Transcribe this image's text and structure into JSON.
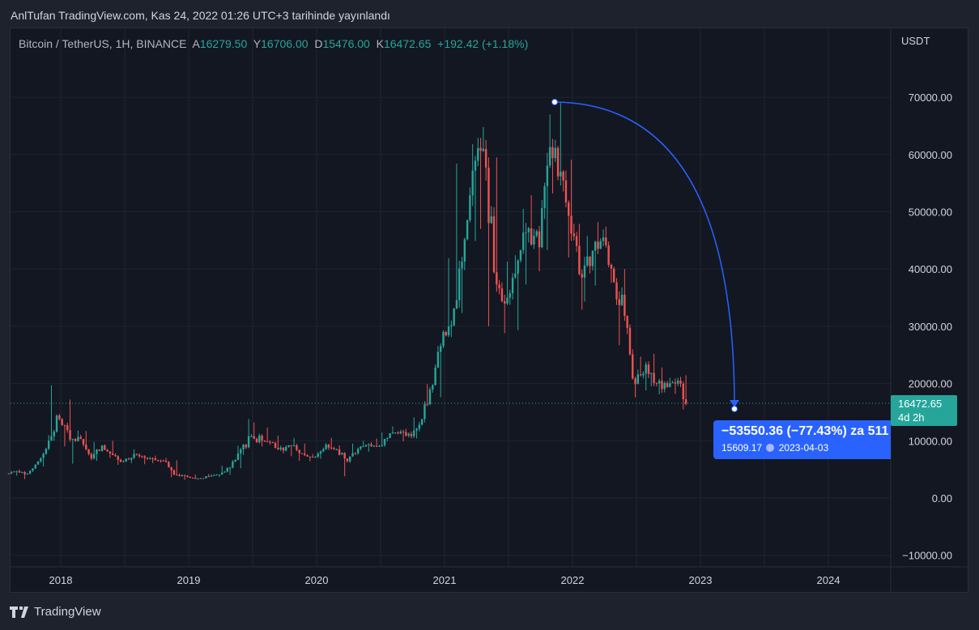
{
  "header": {
    "published": "AnlTufan TradingView.com, Kas 24, 2022 01:26 UTC+3 tarihinde yayınlandı"
  },
  "legend": {
    "symbol": "Bitcoin / TetherUS, 1H, BINANCE",
    "open_label": "A",
    "open": "16279.50",
    "high_label": "Y",
    "high": "16706.00",
    "low_label": "D",
    "low": "15476.00",
    "close_label": "K",
    "close": "16472.65",
    "change": "+192.42 (+1.18%)"
  },
  "price_axis": {
    "currency": "USDT",
    "ticks": [
      "70000.00",
      "60000.00",
      "50000.00",
      "40000.00",
      "30000.00",
      "20000.00",
      "10000.00",
      "0.00",
      "−10000.00"
    ]
  },
  "last_price": {
    "price": "16472.65",
    "countdown": "4d 2h"
  },
  "measure": {
    "line1": "−53550.36 (−77.43%) za 511",
    "price": "15609.17",
    "date": "2023-04-03"
  },
  "footer": {
    "brand": "TradingView"
  },
  "colors": {
    "up": "#26a69a",
    "down": "#ef5350",
    "measure": "#2962ff"
  },
  "chart_data": {
    "type": "candlestick",
    "title": "Bitcoin / TetherUS, 1H, BINANCE",
    "ylabel": "USDT",
    "ylim": [
      -12000,
      78000
    ],
    "xticks": [
      "2018",
      "2019",
      "2020",
      "2021",
      "2022",
      "2023",
      "2024"
    ],
    "start_month": "2017-08",
    "ohlc_monthly_approx": [
      [
        4300,
        4750,
        3900,
        4700
      ],
      [
        4700,
        4980,
        3300,
        4300
      ],
      [
        4300,
        6450,
        4100,
        6400
      ],
      [
        6400,
        11000,
        5500,
        10000
      ],
      [
        10000,
        19700,
        10000,
        13800
      ],
      [
        13800,
        17200,
        9000,
        10200
      ],
      [
        10200,
        11800,
        6000,
        10300
      ],
      [
        10300,
        11700,
        6600,
        6900
      ],
      [
        6900,
        9800,
        6500,
        9200
      ],
      [
        9200,
        10000,
        7000,
        7500
      ],
      [
        7500,
        7800,
        5800,
        6400
      ],
      [
        6400,
        8500,
        6100,
        7700
      ],
      [
        7700,
        7800,
        5900,
        7000
      ],
      [
        7000,
        7400,
        6100,
        6600
      ],
      [
        6600,
        7000,
        6200,
        6300
      ],
      [
        6300,
        6600,
        3600,
        4000
      ],
      [
        4000,
        4300,
        3150,
        3700
      ],
      [
        3700,
        4100,
        3350,
        3400
      ],
      [
        3400,
        4200,
        3350,
        3800
      ],
      [
        3800,
        4150,
        3700,
        4100
      ],
      [
        4100,
        5650,
        4050,
        5300
      ],
      [
        5300,
        9100,
        5200,
        8500
      ],
      [
        8500,
        13800,
        7500,
        10800
      ],
      [
        10800,
        13200,
        9000,
        10000
      ],
      [
        10000,
        12300,
        9300,
        9600
      ],
      [
        9600,
        10900,
        7800,
        8300
      ],
      [
        8300,
        10500,
        7300,
        9200
      ],
      [
        9200,
        9500,
        6500,
        7500
      ],
      [
        7500,
        7700,
        6400,
        7200
      ],
      [
        7200,
        9600,
        6850,
        9300
      ],
      [
        9300,
        10500,
        8400,
        8500
      ],
      [
        8500,
        9200,
        3800,
        6400
      ],
      [
        6400,
        9500,
        6150,
        8600
      ],
      [
        8600,
        10000,
        8100,
        9400
      ],
      [
        9400,
        10400,
        8900,
        9100
      ],
      [
        9100,
        11450,
        8950,
        11300
      ],
      [
        11300,
        12500,
        11100,
        11600
      ],
      [
        11600,
        12100,
        9900,
        10800
      ],
      [
        10800,
        14100,
        10400,
        13800
      ],
      [
        13800,
        19900,
        13200,
        19700
      ],
      [
        19700,
        29300,
        17600,
        29000
      ],
      [
        29000,
        41900,
        28100,
        33100
      ],
      [
        33100,
        58400,
        32300,
        45200
      ],
      [
        45200,
        61800,
        44900,
        58900
      ],
      [
        58900,
        64800,
        47000,
        57700
      ],
      [
        57700,
        59500,
        30000,
        37300
      ],
      [
        37300,
        41300,
        28800,
        35000
      ],
      [
        35000,
        42400,
        29300,
        41500
      ],
      [
        41500,
        50500,
        37300,
        47100
      ],
      [
        47100,
        52900,
        39600,
        43800
      ],
      [
        43800,
        67000,
        43300,
        61300
      ],
      [
        61300,
        69000,
        53200,
        57000
      ],
      [
        57000,
        59100,
        42000,
        46200
      ],
      [
        46200,
        47900,
        32900,
        38500
      ],
      [
        38500,
        45800,
        34300,
        43200
      ],
      [
        43200,
        48200,
        37100,
        45500
      ],
      [
        45500,
        47400,
        37600,
        37700
      ],
      [
        37700,
        40000,
        26700,
        31800
      ],
      [
        31800,
        31900,
        17600,
        19900
      ],
      [
        19900,
        24700,
        18800,
        23300
      ],
      [
        23300,
        25200,
        19500,
        20000
      ],
      [
        20000,
        22800,
        18100,
        19400
      ],
      [
        19400,
        21000,
        18200,
        20500
      ],
      [
        20500,
        21450,
        15476,
        16470
      ]
    ],
    "last_price": 16472.65,
    "measurement": {
      "from_price": 69000,
      "from_date": "2021-11",
      "to_price": 15609.17,
      "to_date": "2023-04-03",
      "change": -53550.36,
      "change_pct": -77.43
    }
  }
}
